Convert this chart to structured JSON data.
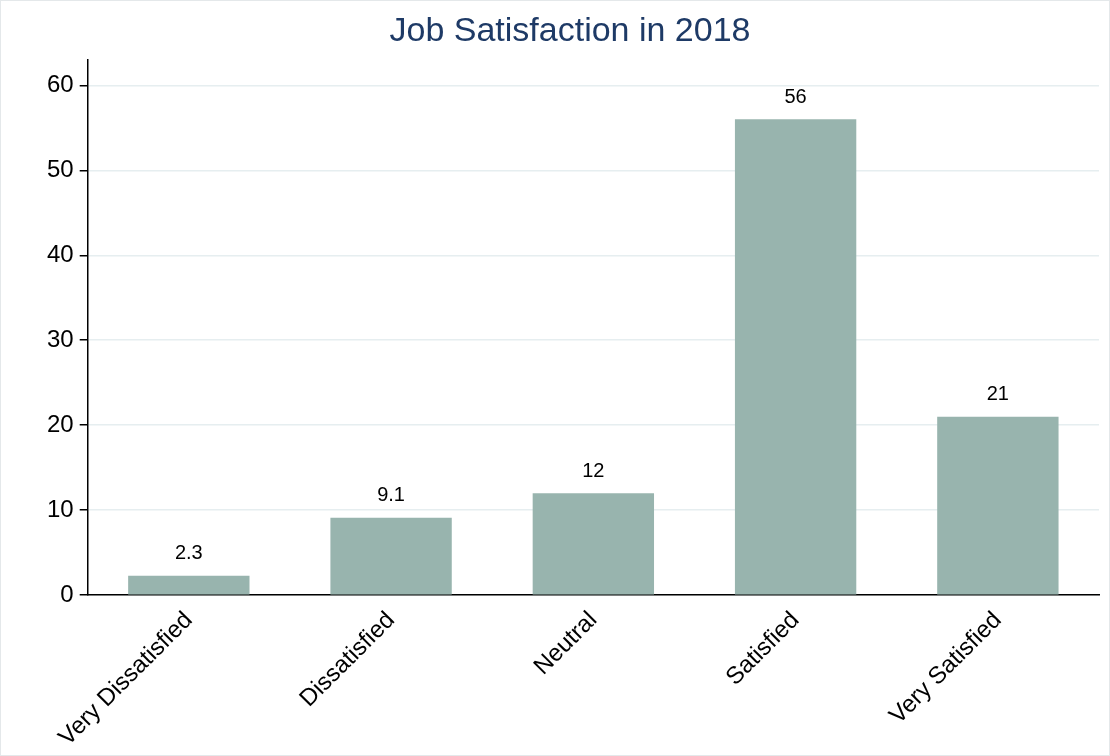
{
  "chart_data": {
    "type": "bar",
    "title": "Job Satisfaction in 2018",
    "categories": [
      "Very Dissatisfied",
      "Dissatisfied",
      "Neutral",
      "Satisfied",
      "Very Satisfied"
    ],
    "values": [
      2.3,
      9.1,
      12,
      56,
      21
    ],
    "color": "#98b4ae",
    "ylim": [
      0,
      63
    ],
    "yticks": [
      0,
      10,
      20,
      30,
      40,
      50,
      60
    ],
    "grid": "y",
    "data_labels": true,
    "legend": false
  }
}
